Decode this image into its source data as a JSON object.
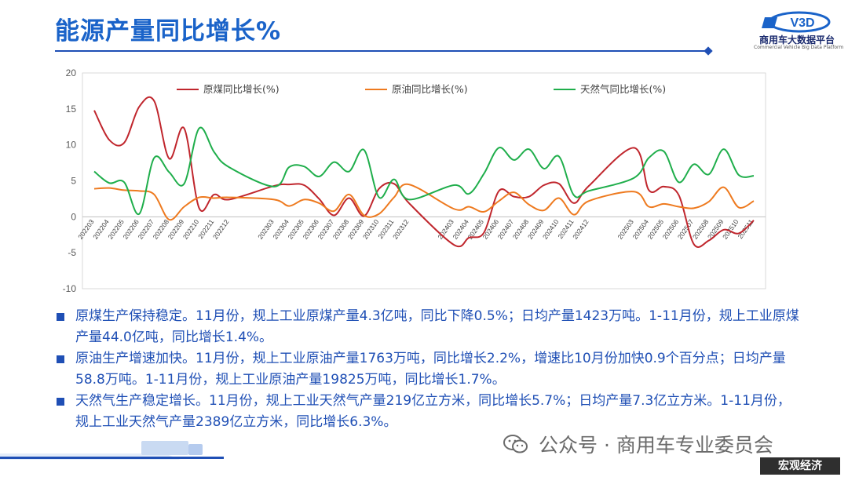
{
  "header": {
    "title": "能源产量同比增长%"
  },
  "logo": {
    "name": "商用车大数据平台",
    "sub": "Commercial Vehicle Big Data Platform",
    "mark": "V3D"
  },
  "chart_data": {
    "type": "line",
    "ylim": [
      -10,
      20
    ],
    "yticks": [
      -10,
      -5,
      0,
      5,
      10,
      15,
      20
    ],
    "legend_position": "top",
    "grid": false,
    "x": [
      "202203",
      "202204",
      "202205",
      "202206",
      "202207",
      "202208",
      "202209",
      "202210",
      "202211",
      "202212",
      "202301",
      "202302",
      "202303",
      "202304",
      "202305",
      "202306",
      "202307",
      "202308",
      "202309",
      "202310",
      "202311",
      "202312",
      "202401",
      "202402",
      "202403",
      "202404",
      "202405",
      "202406",
      "202407",
      "202408",
      "202409",
      "202410",
      "202411",
      "202412",
      "202501",
      "202502",
      "202503",
      "202504",
      "202505",
      "202506",
      "202507",
      "202508",
      "202509",
      "202510",
      "202511"
    ],
    "x_tick_labels": [
      "202203",
      "202204",
      "202205",
      "202206",
      "202207",
      "202208",
      "202209",
      "202210",
      "202211",
      "202212",
      "202303",
      "202304",
      "202305",
      "202306",
      "202307",
      "202308",
      "202309",
      "202310",
      "202311",
      "202312",
      "202403",
      "202404",
      "202405",
      "202406",
      "202407",
      "202408",
      "202409",
      "202410",
      "202411",
      "202412",
      "202503",
      "202504",
      "202505",
      "202506",
      "202507",
      "202508",
      "202509",
      "202510",
      "202511"
    ],
    "series": [
      {
        "name": "原煤同比增长(%)",
        "color": "#c0262d",
        "values": [
          14.8,
          10.7,
          10.3,
          15.3,
          16.1,
          8.1,
          12.3,
          1.2,
          3.1,
          2.4,
          null,
          null,
          4.3,
          4.5,
          4.4,
          2.5,
          0.2,
          2.6,
          0.1,
          3.9,
          4.6,
          1.9,
          null,
          null,
          -3.9,
          -2.9,
          -2.2,
          3.6,
          2.8,
          2.8,
          4.4,
          4.6,
          1.9,
          4.3,
          null,
          null,
          9.6,
          3.7,
          4.2,
          3.0,
          -3.8,
          -3.3,
          -1.8,
          -2.3,
          -0.5
        ]
      },
      {
        "name": "原油同比增长(%)",
        "color": "#ee7a1f",
        "values": [
          3.9,
          4.0,
          3.7,
          3.6,
          3.1,
          -0.4,
          1.4,
          2.7,
          2.6,
          2.7,
          null,
          null,
          2.4,
          1.5,
          2.4,
          1.9,
          0.8,
          3.1,
          0.2,
          0.4,
          2.7,
          4.5,
          null,
          null,
          1.1,
          1.4,
          0.7,
          2.2,
          3.4,
          1.7,
          0.9,
          2.6,
          0.3,
          2.2,
          null,
          null,
          3.5,
          1.4,
          1.8,
          1.4,
          1.2,
          2.1,
          4.1,
          1.3,
          2.2
        ]
      },
      {
        "name": "天然气同比增长(%)",
        "color": "#1fae4b",
        "values": [
          6.3,
          4.7,
          4.8,
          0.4,
          8.2,
          6.2,
          4.6,
          12.3,
          9.0,
          6.9,
          null,
          null,
          4.2,
          6.9,
          7.0,
          5.6,
          7.6,
          6.3,
          9.3,
          2.7,
          5.2,
          2.4,
          null,
          null,
          4.4,
          3.2,
          6.0,
          9.6,
          7.9,
          9.4,
          6.7,
          8.4,
          3.0,
          3.6,
          null,
          null,
          5.4,
          8.2,
          9.1,
          4.8,
          7.3,
          5.9,
          9.4,
          5.8,
          5.7
        ]
      }
    ]
  },
  "bullets": [
    "原煤生产保持稳定。11月份，规上工业原煤产量4.3亿吨，同比下降0.5%；日均产量1423万吨。1-11月份，规上工业原煤产量44.0亿吨，同比增长1.4%。",
    "原油生产增速加快。11月份，规上工业原油产量1763万吨，同比增长2.2%，增速比10月份加快0.9个百分点；日均产量58.8万吨。1-11月份，规上工业原油产量19825万吨，同比增长1.7%。",
    "天然气生产稳定增长。11月份，规上工业天然气产量219亿立方米，同比增长5.7%；日均产量7.3亿立方米。1-11月份，规上工业天然气产量2389亿立方米，同比增长6.3%。"
  ],
  "watermark": "公众号 · 商用车专业委员会",
  "category_tag": "宏观经济"
}
